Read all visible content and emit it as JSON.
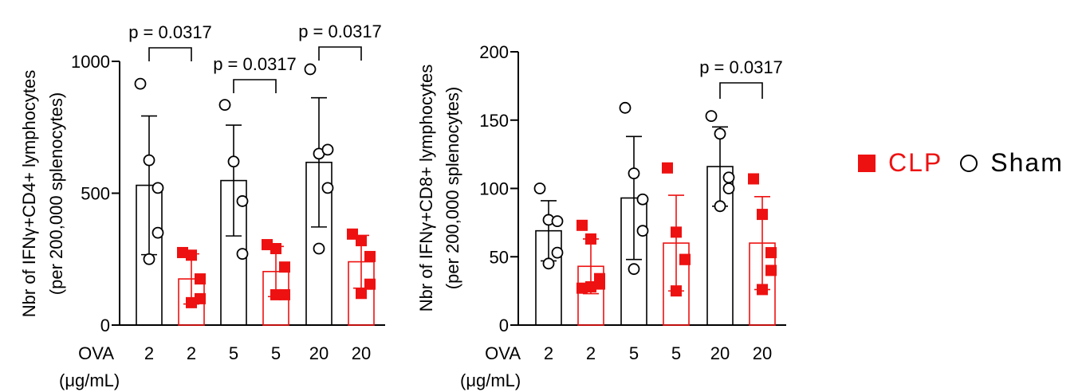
{
  "colors": {
    "clp": "#ee1111",
    "sham": "#000000"
  },
  "legend": {
    "clp_label": "CLP",
    "sham_label": "Sham"
  },
  "chart_data": [
    {
      "type": "bar",
      "ylabel_line1": "Nbr of IFNγ+CD4+ lymphocytes",
      "ylabel_line2": "(per 200,000 splenocytes)",
      "ylim": [
        0,
        1000
      ],
      "yticks": [
        0,
        500,
        1000
      ],
      "x_prefix": "OVA",
      "x_unit": "(μg/mL)",
      "categories": [
        "2",
        "2",
        "5",
        "5",
        "20",
        "20"
      ],
      "groups": [
        "Sham",
        "CLP",
        "Sham",
        "CLP",
        "Sham",
        "CLP"
      ],
      "means": [
        530,
        175,
        548,
        203,
        617,
        240
      ],
      "sd": [
        263,
        95,
        210,
        95,
        245,
        100
      ],
      "points": [
        [
          915,
          625,
          520,
          350,
          250
        ],
        [
          275,
          265,
          175,
          100,
          85
        ],
        [
          835,
          620,
          470,
          270
        ],
        [
          305,
          290,
          220,
          115,
          115
        ],
        [
          970,
          650,
          665,
          520,
          290
        ],
        [
          345,
          320,
          260,
          155,
          120
        ]
      ],
      "comparisons": [
        {
          "from": 0,
          "to": 1,
          "label": "p = 0.0317"
        },
        {
          "from": 2,
          "to": 3,
          "label": "p = 0.0317"
        },
        {
          "from": 4,
          "to": 5,
          "label": "p = 0.0317"
        }
      ]
    },
    {
      "type": "bar",
      "ylabel_line1": "Nbr of IFNγ+CD8+ lymphocytes",
      "ylabel_line2": "(per 200,000 splenocytes)",
      "ylim": [
        0,
        200
      ],
      "yticks": [
        0,
        50,
        100,
        150,
        200
      ],
      "x_prefix": "OVA",
      "x_unit": "(μg/mL)",
      "categories": [
        "2",
        "2",
        "5",
        "5",
        "20",
        "20"
      ],
      "groups": [
        "Sham",
        "CLP",
        "Sham",
        "CLP",
        "Sham",
        "CLP"
      ],
      "means": [
        69,
        43,
        93,
        60,
        116,
        60
      ],
      "sd": [
        22,
        20,
        45,
        35,
        29,
        34
      ],
      "points": [
        [
          100,
          77,
          76,
          53,
          45
        ],
        [
          73,
          63,
          34,
          30,
          28,
          27
        ],
        [
          159,
          111,
          92,
          69,
          41
        ],
        [
          115,
          68,
          48,
          48,
          25
        ],
        [
          153,
          140,
          108,
          100,
          87
        ],
        [
          107,
          81,
          53,
          40,
          26
        ]
      ],
      "comparisons": [
        {
          "from": 4,
          "to": 5,
          "label": "p = 0.0317"
        }
      ]
    }
  ]
}
